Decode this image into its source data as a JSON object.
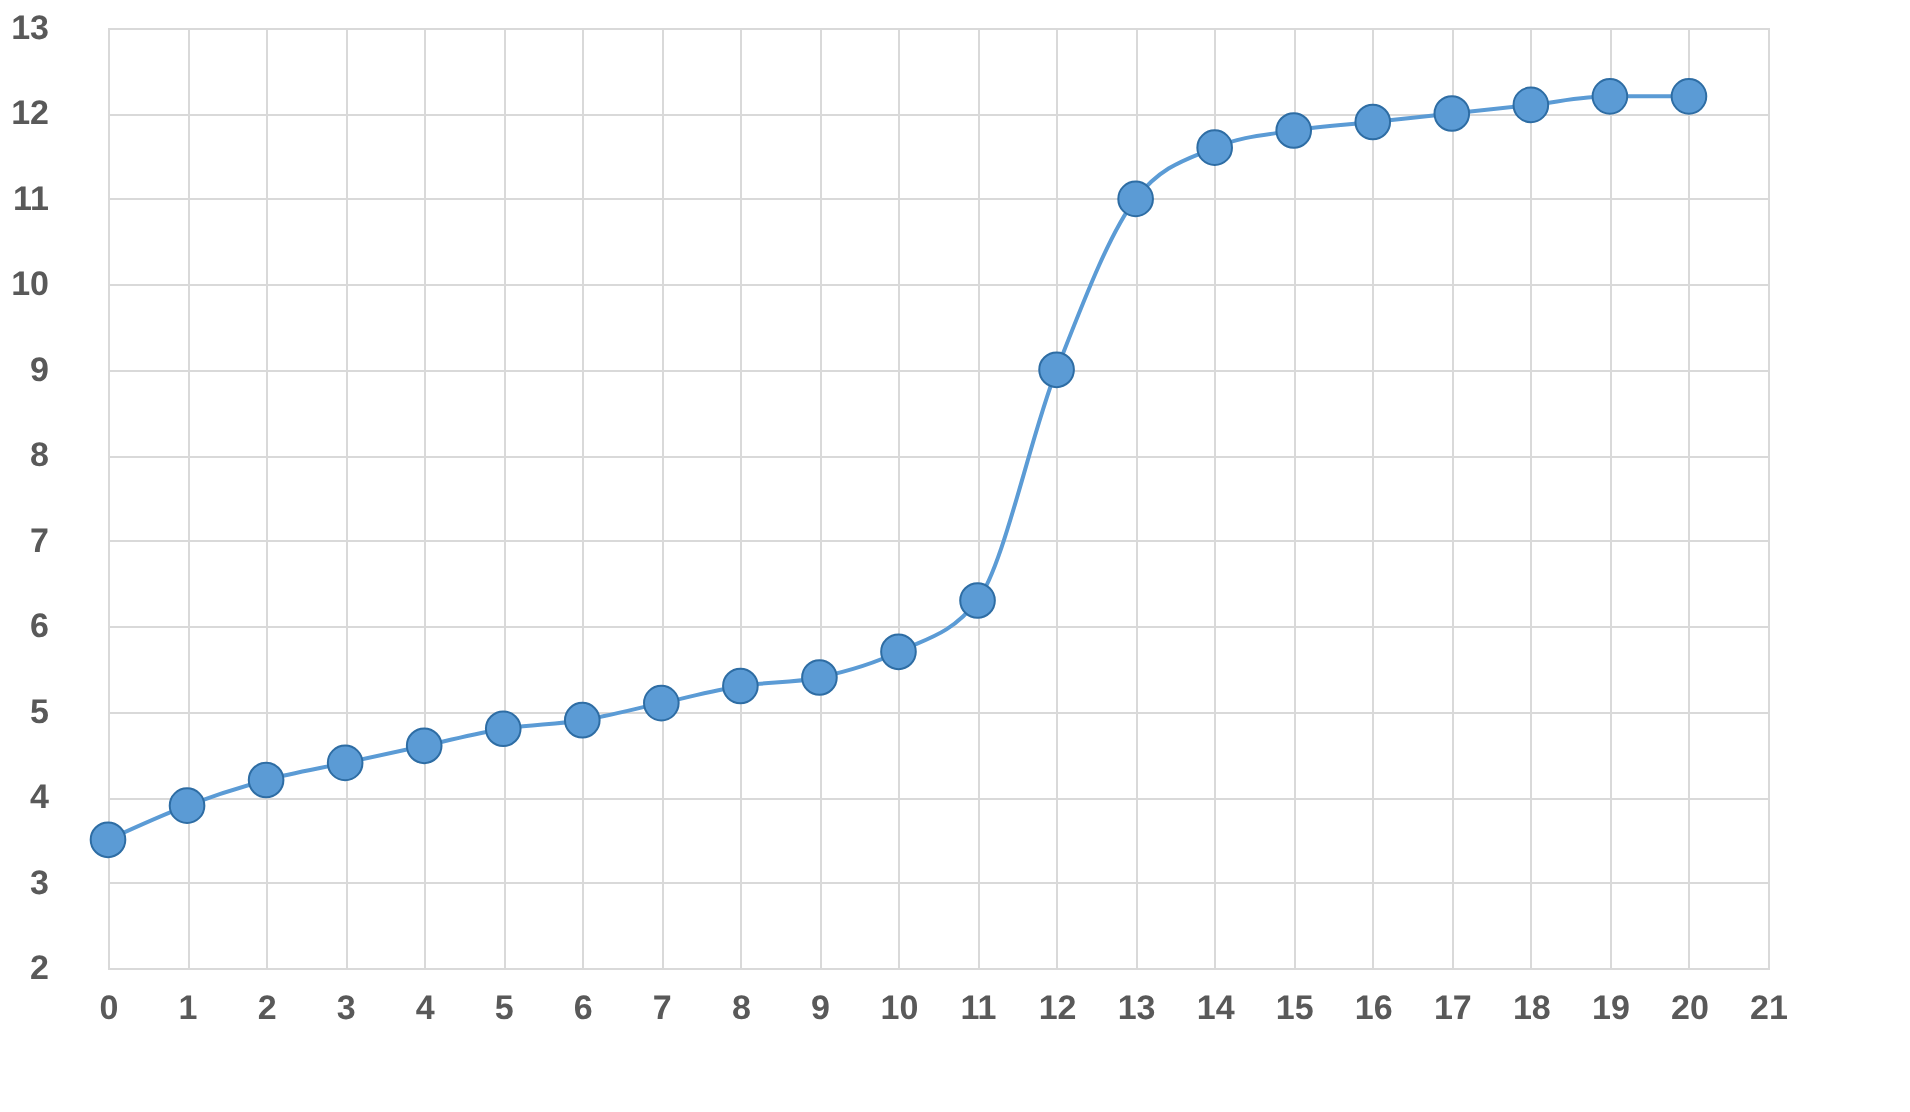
{
  "chart_data": {
    "type": "line",
    "x": [
      0,
      1,
      2,
      3,
      4,
      5,
      6,
      7,
      8,
      9,
      10,
      11,
      12,
      13,
      14,
      15,
      16,
      17,
      18,
      19,
      20
    ],
    "series": [
      {
        "color": "#5b9bd5",
        "values": [
          3.5,
          3.9,
          4.2,
          4.4,
          4.6,
          4.8,
          4.9,
          5.1,
          5.3,
          5.4,
          5.7,
          6.3,
          9.0,
          11.0,
          11.6,
          11.8,
          11.9,
          12.0,
          12.1,
          12.2,
          12.2
        ]
      }
    ],
    "xlim": [
      0,
      21
    ],
    "xticks": [
      0,
      1,
      2,
      3,
      4,
      5,
      6,
      7,
      8,
      9,
      10,
      11,
      12,
      13,
      14,
      15,
      16,
      17,
      18,
      19,
      20,
      21
    ],
    "ylim": [
      2,
      13
    ],
    "yticks": [
      2,
      3,
      4,
      5,
      6,
      7,
      8,
      9,
      10,
      11,
      12,
      13
    ],
    "grid": true,
    "marker": "circle",
    "line_style": "solid"
  }
}
